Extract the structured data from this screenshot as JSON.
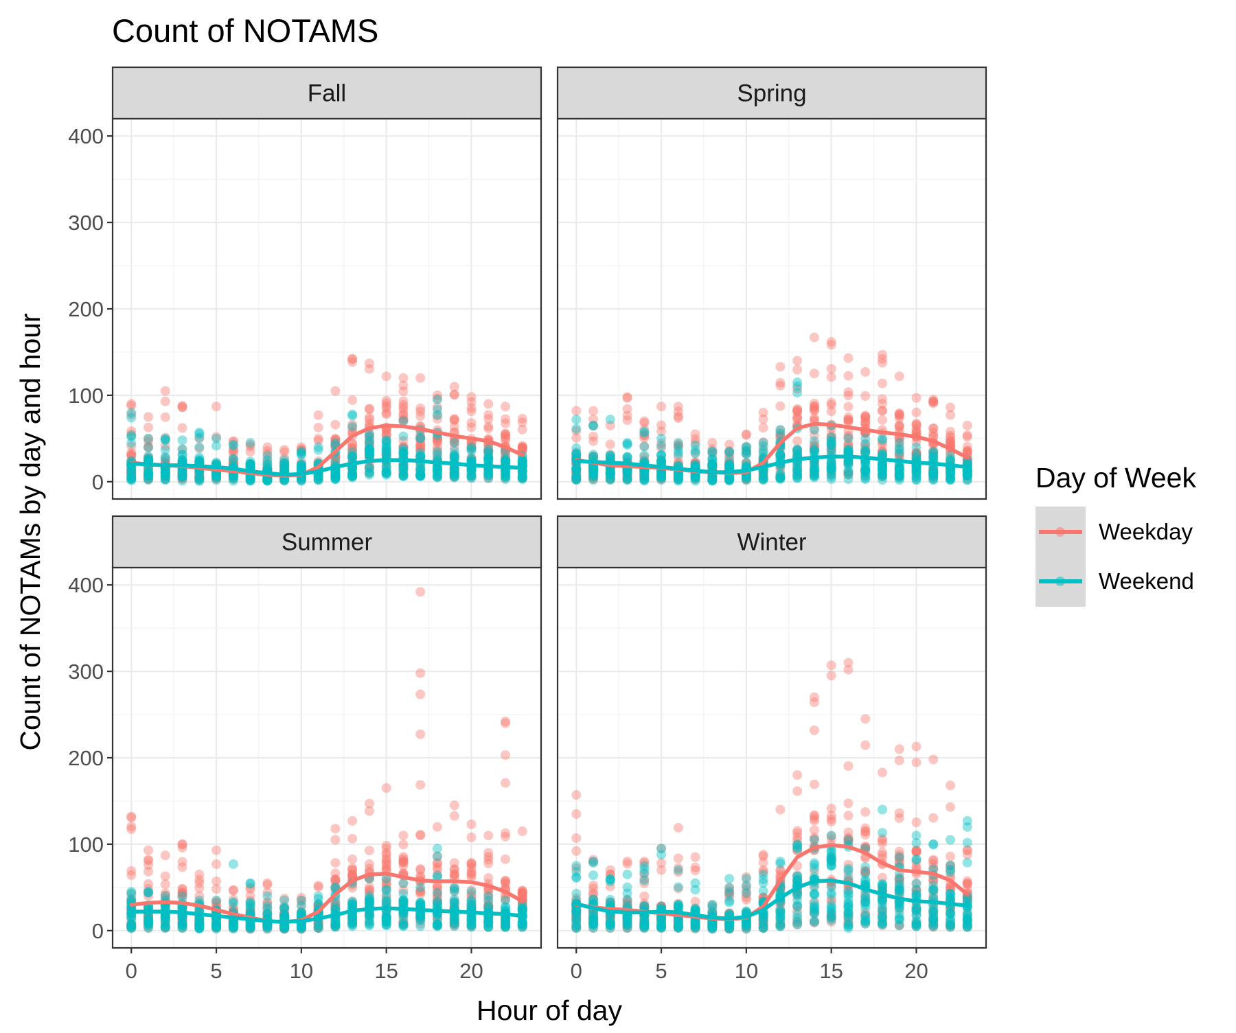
{
  "chart_data": {
    "type": "scatter",
    "title": "Count of NOTAMS",
    "xlabel": "Hour of day",
    "ylabel": "Count of NOTAMs by day and hour",
    "xlim": [
      -1.1,
      24.1
    ],
    "ylim": [
      -20,
      420
    ],
    "x_ticks": [
      0,
      5,
      10,
      15,
      20
    ],
    "y_ticks": [
      0,
      100,
      200,
      300,
      400
    ],
    "x_tick_labels": [
      "0",
      "5",
      "10",
      "15",
      "20"
    ],
    "y_tick_labels": [
      "0",
      "100",
      "200",
      "300",
      "400"
    ],
    "grid": true,
    "legend": {
      "title": "Day of Week",
      "position": "right",
      "entries": [
        "Weekday",
        "Weekend"
      ]
    },
    "colors": {
      "Weekday": "#F8766D",
      "Weekend": "#00BFC4"
    },
    "hours": [
      0,
      1,
      2,
      3,
      4,
      5,
      6,
      7,
      8,
      9,
      10,
      11,
      12,
      13,
      14,
      15,
      16,
      17,
      18,
      19,
      20,
      21,
      22,
      23
    ],
    "panels": [
      {
        "name": "Fall",
        "series": [
          {
            "name": "Weekday",
            "range": [
              [
                5,
                90
              ],
              [
                3,
                75
              ],
              [
                3,
                105
              ],
              [
                3,
                88
              ],
              [
                3,
                50
              ],
              [
                3,
                87
              ],
              [
                3,
                47
              ],
              [
                2,
                43
              ],
              [
                2,
                40
              ],
              [
                2,
                37
              ],
              [
                2,
                40
              ],
              [
                4,
                77
              ],
              [
                6,
                105
              ],
              [
                8,
                142
              ],
              [
                10,
                137
              ],
              [
                10,
                122
              ],
              [
                8,
                120
              ],
              [
                8,
                120
              ],
              [
                6,
                100
              ],
              [
                6,
                110
              ],
              [
                5,
                98
              ],
              [
                4,
                90
              ],
              [
                4,
                87
              ],
              [
                4,
                73
              ]
            ],
            "smooth": [
              22,
              20,
              19,
              18,
              16,
              14,
              12,
              10,
              8,
              7,
              8,
              17,
              35,
              53,
              62,
              65,
              64,
              61,
              57,
              53,
              50,
              47,
              40,
              31
            ]
          },
          {
            "name": "Weekend",
            "range": [
              [
                2,
                80
              ],
              [
                2,
                50
              ],
              [
                2,
                50
              ],
              [
                1,
                48
              ],
              [
                1,
                57
              ],
              [
                2,
                50
              ],
              [
                1,
                43
              ],
              [
                1,
                45
              ],
              [
                1,
                30
              ],
              [
                1,
                25
              ],
              [
                1,
                35
              ],
              [
                2,
                40
              ],
              [
                3,
                45
              ],
              [
                5,
                78
              ],
              [
                8,
                55
              ],
              [
                8,
                48
              ],
              [
                6,
                70
              ],
              [
                6,
                60
              ],
              [
                5,
                95
              ],
              [
                5,
                45
              ],
              [
                4,
                40
              ],
              [
                4,
                38
              ],
              [
                3,
                35
              ],
              [
                3,
                30
              ]
            ],
            "smooth": [
              21,
              20,
              19,
              19,
              18,
              17,
              15,
              12,
              10,
              8,
              9,
              12,
              17,
              21,
              24,
              25,
              25,
              24,
              22,
              21,
              19,
              18,
              17,
              16
            ]
          }
        ]
      },
      {
        "name": "Spring",
        "series": [
          {
            "name": "Weekday",
            "range": [
              [
                3,
                82
              ],
              [
                3,
                82
              ],
              [
                3,
                65
              ],
              [
                3,
                98
              ],
              [
                3,
                70
              ],
              [
                3,
                87
              ],
              [
                3,
                87
              ],
              [
                3,
                55
              ],
              [
                2,
                45
              ],
              [
                2,
                43
              ],
              [
                2,
                55
              ],
              [
                3,
                80
              ],
              [
                5,
                133
              ],
              [
                7,
                140
              ],
              [
                8,
                167
              ],
              [
                8,
                162
              ],
              [
                8,
                143
              ],
              [
                7,
                127
              ],
              [
                6,
                147
              ],
              [
                6,
                122
              ],
              [
                5,
                97
              ],
              [
                4,
                95
              ],
              [
                4,
                86
              ],
              [
                4,
                65
              ]
            ],
            "smooth": [
              25,
              22,
              19,
              18,
              17,
              16,
              14,
              12,
              11,
              10,
              11,
              22,
              45,
              62,
              67,
              66,
              63,
              60,
              57,
              55,
              52,
              47,
              38,
              28
            ]
          },
          {
            "name": "Weekend",
            "range": [
              [
                2,
                72
              ],
              [
                2,
                65
              ],
              [
                2,
                72
              ],
              [
                2,
                45
              ],
              [
                1,
                58
              ],
              [
                2,
                50
              ],
              [
                1,
                45
              ],
              [
                1,
                42
              ],
              [
                1,
                35
              ],
              [
                1,
                35
              ],
              [
                2,
                40
              ],
              [
                2,
                45
              ],
              [
                3,
                60
              ],
              [
                4,
                115
              ],
              [
                5,
                60
              ],
              [
                3,
                65
              ],
              [
                3,
                50
              ],
              [
                3,
                50
              ],
              [
                2,
                50
              ],
              [
                2,
                45
              ],
              [
                2,
                40
              ],
              [
                2,
                35
              ],
              [
                2,
                30
              ],
              [
                2,
                25
              ]
            ],
            "smooth": [
              24,
              23,
              22,
              21,
              19,
              17,
              15,
              13,
              11,
              11,
              13,
              17,
              22,
              26,
              28,
              29,
              29,
              28,
              26,
              24,
              22,
              21,
              19,
              17
            ]
          }
        ]
      },
      {
        "name": "Summer",
        "series": [
          {
            "name": "Weekday",
            "range": [
              [
                3,
                132
              ],
              [
                3,
                93
              ],
              [
                3,
                87
              ],
              [
                3,
                100
              ],
              [
                3,
                65
              ],
              [
                3,
                93
              ],
              [
                3,
                47
              ],
              [
                2,
                50
              ],
              [
                2,
                55
              ],
              [
                2,
                37
              ],
              [
                2,
                38
              ],
              [
                3,
                52
              ],
              [
                5,
                118
              ],
              [
                8,
                127
              ],
              [
                10,
                147
              ],
              [
                10,
                165
              ],
              [
                8,
                110
              ],
              [
                8,
                392
              ],
              [
                6,
                120
              ],
              [
                6,
                145
              ],
              [
                5,
                123
              ],
              [
                4,
                110
              ],
              [
                4,
                242
              ],
              [
                4,
                115
              ]
            ],
            "smooth": [
              30,
              32,
              33,
              32,
              29,
              24,
              19,
              15,
              11,
              10,
              12,
              22,
              42,
              58,
              65,
              66,
              62,
              58,
              57,
              57,
              56,
              52,
              45,
              34
            ]
          },
          {
            "name": "Weekend",
            "range": [
              [
                3,
                45
              ],
              [
                3,
                45
              ],
              [
                3,
                40
              ],
              [
                3,
                40
              ],
              [
                2,
                35
              ],
              [
                2,
                35
              ],
              [
                2,
                77
              ],
              [
                2,
                55
              ],
              [
                2,
                40
              ],
              [
                2,
                35
              ],
              [
                2,
                35
              ],
              [
                3,
                40
              ],
              [
                4,
                50
              ],
              [
                5,
                55
              ],
              [
                6,
                60
              ],
              [
                6,
                60
              ],
              [
                5,
                55
              ],
              [
                5,
                50
              ],
              [
                5,
                95
              ],
              [
                5,
                50
              ],
              [
                4,
                45
              ],
              [
                4,
                40
              ],
              [
                4,
                35
              ],
              [
                4,
                30
              ]
            ],
            "smooth": [
              22,
              22,
              22,
              21,
              19,
              17,
              15,
              13,
              11,
              10,
              11,
              14,
              18,
              23,
              25,
              26,
              25,
              24,
              23,
              22,
              21,
              20,
              19,
              17
            ]
          }
        ]
      },
      {
        "name": "Winter",
        "series": [
          {
            "name": "Weekday",
            "range": [
              [
                3,
                157
              ],
              [
                3,
                82
              ],
              [
                3,
                70
              ],
              [
                3,
                80
              ],
              [
                3,
                80
              ],
              [
                3,
                95
              ],
              [
                3,
                119
              ],
              [
                2,
                85
              ],
              [
                2,
                30
              ],
              [
                2,
                50
              ],
              [
                2,
                62
              ],
              [
                3,
                88
              ],
              [
                5,
                140
              ],
              [
                7,
                180
              ],
              [
                9,
                270
              ],
              [
                10,
                307
              ],
              [
                9,
                310
              ],
              [
                8,
                245
              ],
              [
                6,
                183
              ],
              [
                6,
                210
              ],
              [
                5,
                213
              ],
              [
                4,
                198
              ],
              [
                4,
                168
              ],
              [
                4,
                93
              ]
            ],
            "smooth": [
              30,
              27,
              25,
              24,
              22,
              20,
              18,
              16,
              14,
              13,
              15,
              28,
              58,
              85,
              96,
              99,
              97,
              90,
              78,
              70,
              68,
              66,
              58,
              42
            ]
          },
          {
            "name": "Weekend",
            "range": [
              [
                3,
                75
              ],
              [
                3,
                80
              ],
              [
                3,
                60
              ],
              [
                3,
                65
              ],
              [
                3,
                75
              ],
              [
                3,
                95
              ],
              [
                3,
                70
              ],
              [
                3,
                55
              ],
              [
                2,
                30
              ],
              [
                2,
                60
              ],
              [
                2,
                60
              ],
              [
                3,
                65
              ],
              [
                5,
                80
              ],
              [
                7,
                100
              ],
              [
                10,
                105
              ],
              [
                12,
                110
              ],
              [
                3,
                105
              ],
              [
                8,
                95
              ],
              [
                7,
                140
              ],
              [
                6,
                85
              ],
              [
                5,
                110
              ],
              [
                5,
                100
              ],
              [
                4,
                105
              ],
              [
                4,
                127
              ]
            ],
            "smooth": [
              31,
              26,
              22,
              21,
              21,
              22,
              21,
              18,
              15,
              14,
              16,
              24,
              38,
              50,
              57,
              58,
              55,
              48,
              42,
              37,
              34,
              33,
              31,
              29
            ]
          }
        ]
      }
    ]
  }
}
